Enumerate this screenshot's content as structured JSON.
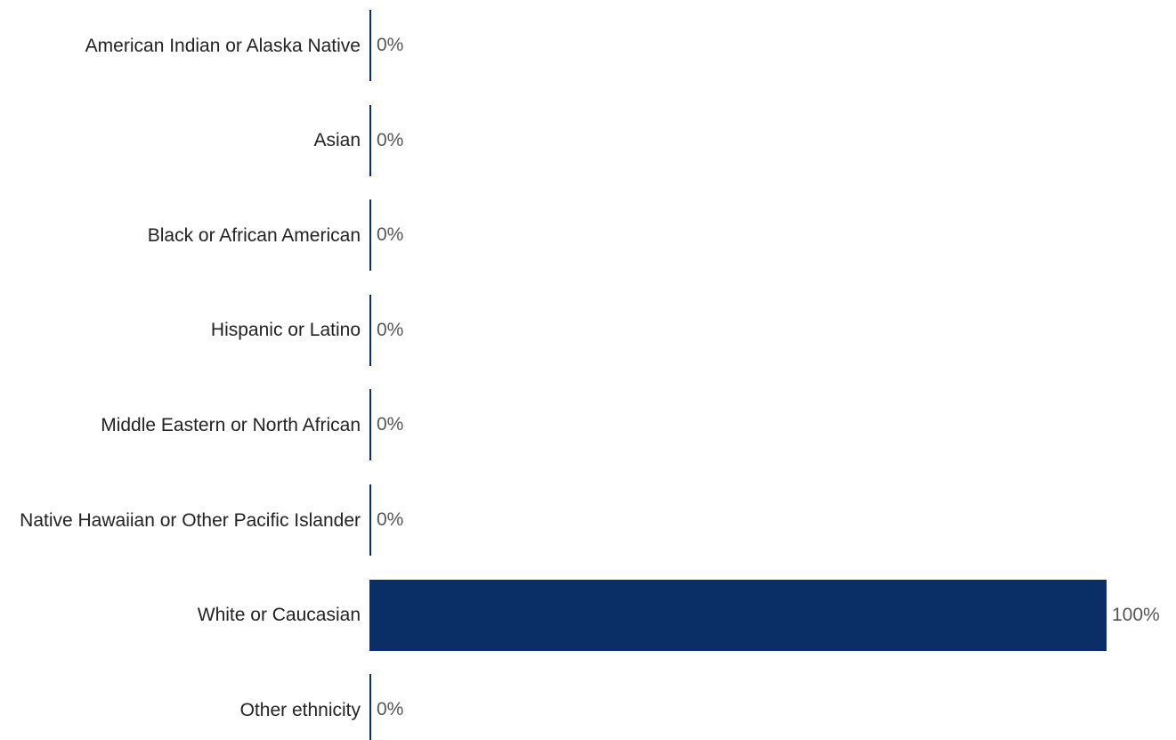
{
  "chart_data": {
    "type": "bar",
    "orientation": "horizontal",
    "categories": [
      "American Indian or Alaska Native",
      "Asian",
      "Black or African American",
      "Hispanic or Latino",
      "Middle Eastern or North African",
      "Native Hawaiian or Other Pacific Islander",
      "White or Caucasian",
      "Other ethnicity"
    ],
    "values": [
      0,
      0,
      0,
      0,
      0,
      0,
      100,
      0
    ],
    "value_labels": [
      "0%",
      "0%",
      "0%",
      "0%",
      "0%",
      "0%",
      "100%",
      "0%"
    ],
    "color": "#0a2f66"
  }
}
